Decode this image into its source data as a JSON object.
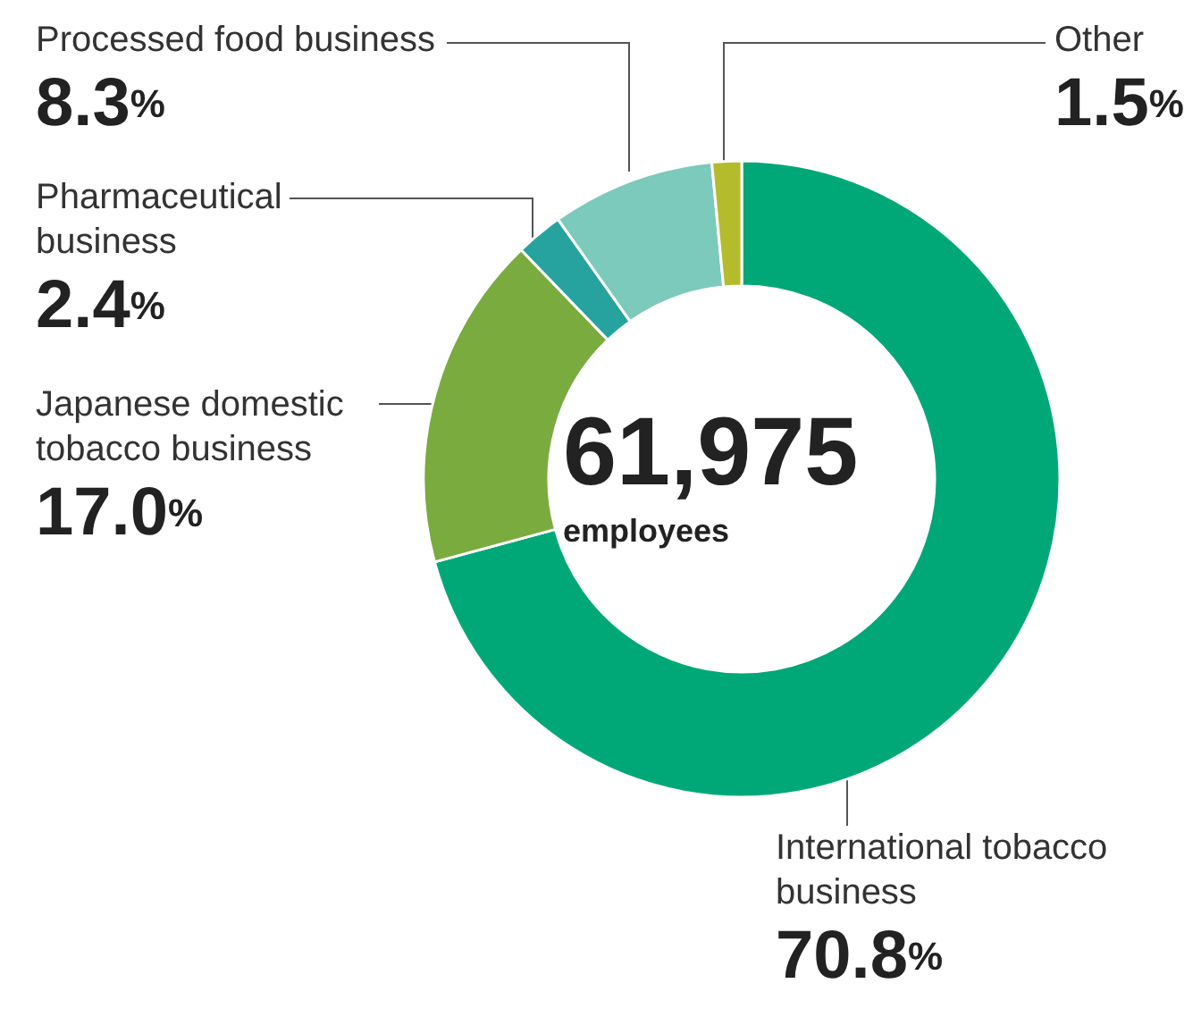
{
  "chart_data": {
    "type": "donut",
    "categories": [
      "International tobacco business",
      "Japanese domestic tobacco business",
      "Pharmaceutical business",
      "Processed food business",
      "Other"
    ],
    "values": [
      70.8,
      17.0,
      2.4,
      8.3,
      1.5
    ],
    "value_labels": [
      "70.8%",
      "17.0%",
      "2.4%",
      "8.3%",
      "1.5%"
    ],
    "colors": [
      "#00a878",
      "#7aab3e",
      "#27a39f",
      "#7ccabb",
      "#b4bc2c"
    ],
    "annotations": [
      "61,975",
      "employees"
    ],
    "legend": false
  }
}
